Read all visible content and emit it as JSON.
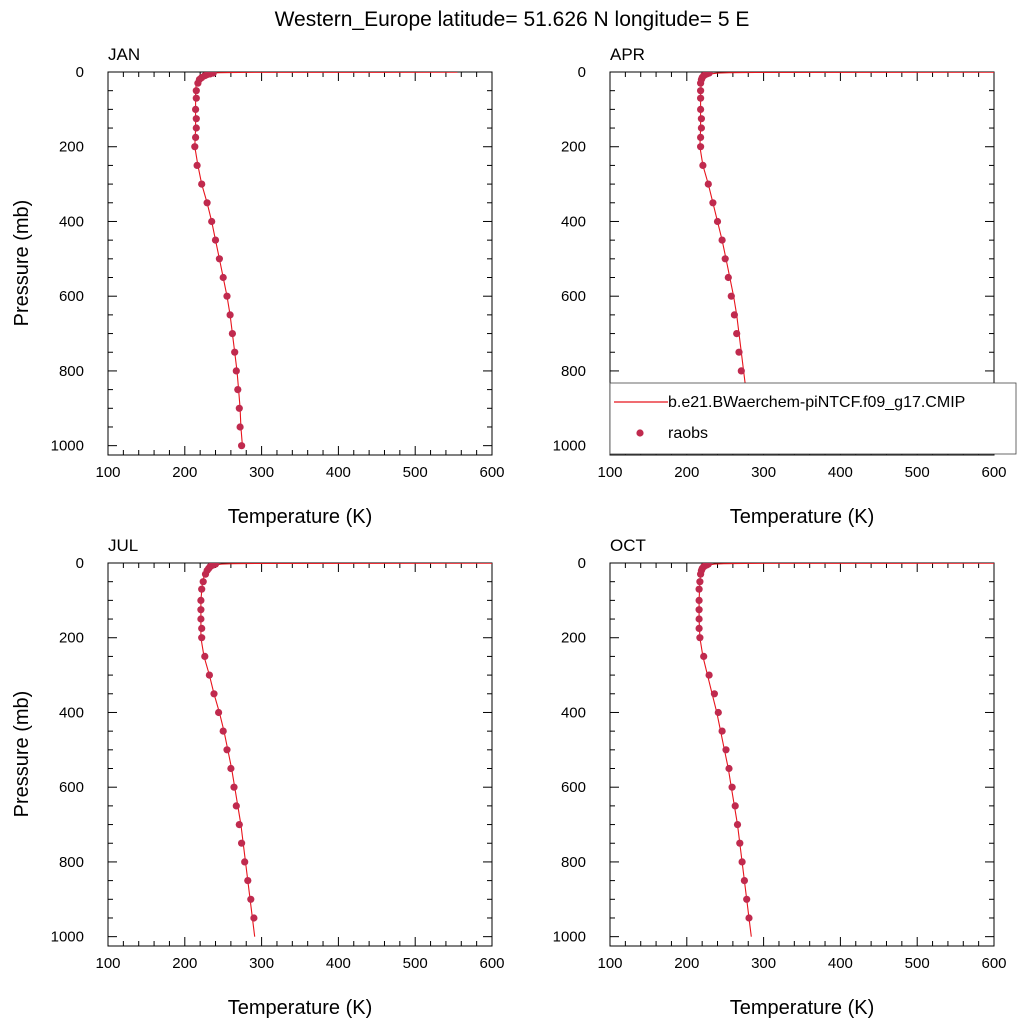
{
  "title": "Western_Europe  latitude= 51.626 N longitude= 5 E",
  "colors": {
    "model_line": "#e8141c",
    "raobs_marker": "#c02a4e",
    "frame": "#000000"
  },
  "legend": {
    "panel": "APR",
    "placement": "lower-right of APR panel",
    "items": [
      {
        "label": "b.e21.BWaerchem-piNTCF.f09_g17.CMIP",
        "style": "line"
      },
      {
        "label": "raobs",
        "style": "marker"
      }
    ]
  },
  "chart_data": [
    {
      "type": "line",
      "panel_title": "JAN",
      "xlabel": "Temperature (K)",
      "ylabel": "Pressure (mb)",
      "xlim": [
        100,
        600
      ],
      "ylim": [
        1025,
        0
      ],
      "y_inverted": true,
      "x_ticks": [
        100,
        200,
        300,
        400,
        500,
        600
      ],
      "y_ticks": [
        0,
        200,
        400,
        600,
        800,
        1000
      ],
      "series": [
        {
          "name": "b.e21.BWaerchem-piNTCF.f09_g17.CMIP",
          "kind": "line",
          "pressure": [
            0.5,
            1,
            2,
            3,
            5,
            7,
            10,
            15,
            20,
            30,
            50,
            100,
            150,
            200,
            250,
            300,
            350,
            400,
            450,
            500,
            550,
            600,
            650,
            700,
            750,
            800,
            850,
            900,
            950,
            1000
          ],
          "temperature": [
            555,
            270,
            245,
            232,
            225,
            222,
            219,
            217,
            216,
            215,
            214,
            214,
            214,
            213,
            217,
            222,
            229,
            235,
            240,
            245,
            250,
            255,
            259,
            262,
            265,
            268,
            270,
            272,
            273,
            275
          ]
        },
        {
          "name": "raobs",
          "kind": "marker",
          "pressure": [
            3,
            5,
            7,
            10,
            15,
            20,
            30,
            50,
            70,
            100,
            125,
            150,
            175,
            200,
            250,
            300,
            350,
            400,
            450,
            500,
            550,
            600,
            650,
            700,
            750,
            800,
            850,
            900,
            950,
            1000
          ],
          "temperature": [
            237,
            233,
            229,
            226,
            222,
            219,
            217,
            215,
            215,
            214,
            215,
            215,
            214,
            213,
            216,
            222,
            229,
            235,
            240,
            245,
            250,
            255,
            259,
            262,
            265,
            267,
            269,
            271,
            272,
            274
          ]
        }
      ]
    },
    {
      "type": "line",
      "panel_title": "APR",
      "xlabel": "Temperature (K)",
      "ylabel": "",
      "xlim": [
        100,
        600
      ],
      "ylim": [
        1025,
        0
      ],
      "y_inverted": true,
      "x_ticks": [
        100,
        200,
        300,
        400,
        500,
        600
      ],
      "y_ticks": [
        0,
        200,
        400,
        600,
        800,
        1000
      ],
      "series": [
        {
          "name": "b.e21.BWaerchem-piNTCF.f09_g17.CMIP",
          "kind": "line",
          "pressure": [
            0.5,
            1,
            2,
            3,
            5,
            7,
            10,
            15,
            20,
            30,
            50,
            100,
            150,
            200,
            250,
            300,
            350,
            400,
            450,
            500,
            550,
            600,
            650,
            700,
            750,
            800,
            850,
            900,
            950,
            1000
          ],
          "temperature": [
            600,
            290,
            255,
            240,
            231,
            226,
            223,
            221,
            220,
            219,
            218,
            218,
            218,
            217,
            221,
            228,
            234,
            240,
            246,
            251,
            256,
            261,
            265,
            268,
            271,
            274,
            277,
            279,
            281,
            283
          ]
        },
        {
          "name": "raobs",
          "kind": "marker",
          "pressure": [
            3,
            5,
            7,
            10,
            15,
            20,
            30,
            50,
            70,
            100,
            125,
            150,
            175,
            200,
            250,
            300,
            350,
            400,
            450,
            500,
            550,
            600,
            650,
            700,
            750,
            800,
            850,
            900,
            950
          ],
          "temperature": [
            229,
            226,
            224,
            222,
            220,
            219,
            218,
            218,
            218,
            218,
            219,
            219,
            218,
            218,
            221,
            228,
            234,
            240,
            246,
            250,
            254,
            258,
            262,
            265,
            268,
            271,
            274,
            277,
            281
          ]
        }
      ]
    },
    {
      "type": "line",
      "panel_title": "JUL",
      "xlabel": "Temperature (K)",
      "ylabel": "Pressure (mb)",
      "xlim": [
        100,
        600
      ],
      "ylim": [
        1025,
        0
      ],
      "y_inverted": true,
      "x_ticks": [
        100,
        200,
        300,
        400,
        500,
        600
      ],
      "y_ticks": [
        0,
        200,
        400,
        600,
        800,
        1000
      ],
      "series": [
        {
          "name": "b.e21.BWaerchem-piNTCF.f09_g17.CMIP",
          "kind": "line",
          "pressure": [
            0.5,
            1,
            2,
            3,
            5,
            7,
            10,
            15,
            20,
            30,
            50,
            100,
            150,
            200,
            250,
            300,
            350,
            400,
            450,
            500,
            550,
            600,
            650,
            700,
            750,
            800,
            850,
            900,
            950,
            1000
          ],
          "temperature": [
            600,
            300,
            262,
            248,
            239,
            235,
            232,
            230,
            228,
            226,
            223,
            221,
            221,
            221,
            225,
            232,
            238,
            245,
            251,
            256,
            261,
            265,
            269,
            273,
            276,
            279,
            282,
            285,
            288,
            291
          ]
        },
        {
          "name": "raobs",
          "kind": "marker",
          "pressure": [
            3,
            5,
            7,
            10,
            15,
            20,
            30,
            50,
            70,
            100,
            125,
            150,
            175,
            200,
            250,
            300,
            350,
            400,
            450,
            500,
            550,
            600,
            650,
            700,
            750,
            800,
            850,
            900,
            950
          ],
          "temperature": [
            240,
            237,
            235,
            233,
            231,
            229,
            227,
            224,
            222,
            221,
            221,
            221,
            222,
            222,
            226,
            232,
            238,
            244,
            250,
            255,
            260,
            264,
            267,
            271,
            274,
            278,
            282,
            286,
            290
          ]
        }
      ]
    },
    {
      "type": "line",
      "panel_title": "OCT",
      "xlabel": "Temperature (K)",
      "ylabel": "",
      "xlim": [
        100,
        600
      ],
      "ylim": [
        1025,
        0
      ],
      "y_inverted": true,
      "x_ticks": [
        100,
        200,
        300,
        400,
        500,
        600
      ],
      "y_ticks": [
        0,
        200,
        400,
        600,
        800,
        1000
      ],
      "series": [
        {
          "name": "b.e21.BWaerchem-piNTCF.f09_g17.CMIP",
          "kind": "line",
          "pressure": [
            0.5,
            1,
            2,
            3,
            5,
            7,
            10,
            15,
            20,
            30,
            50,
            100,
            150,
            200,
            250,
            300,
            350,
            400,
            450,
            500,
            550,
            600,
            650,
            700,
            750,
            800,
            850,
            900,
            950,
            1000
          ],
          "temperature": [
            600,
            275,
            248,
            236,
            229,
            225,
            222,
            220,
            219,
            218,
            217,
            216,
            216,
            217,
            221,
            227,
            233,
            239,
            244,
            249,
            254,
            258,
            262,
            266,
            269,
            272,
            275,
            278,
            281,
            284
          ]
        },
        {
          "name": "raobs",
          "kind": "marker",
          "pressure": [
            3,
            5,
            7,
            10,
            15,
            20,
            30,
            50,
            70,
            100,
            125,
            150,
            175,
            200,
            250,
            300,
            350,
            400,
            450,
            500,
            550,
            600,
            650,
            700,
            750,
            800,
            850,
            900,
            950
          ],
          "temperature": [
            228,
            226,
            224,
            222,
            220,
            219,
            218,
            217,
            216,
            216,
            216,
            216,
            216,
            217,
            222,
            229,
            236,
            241,
            246,
            251,
            255,
            259,
            263,
            266,
            269,
            272,
            275,
            278,
            281
          ]
        }
      ]
    }
  ]
}
